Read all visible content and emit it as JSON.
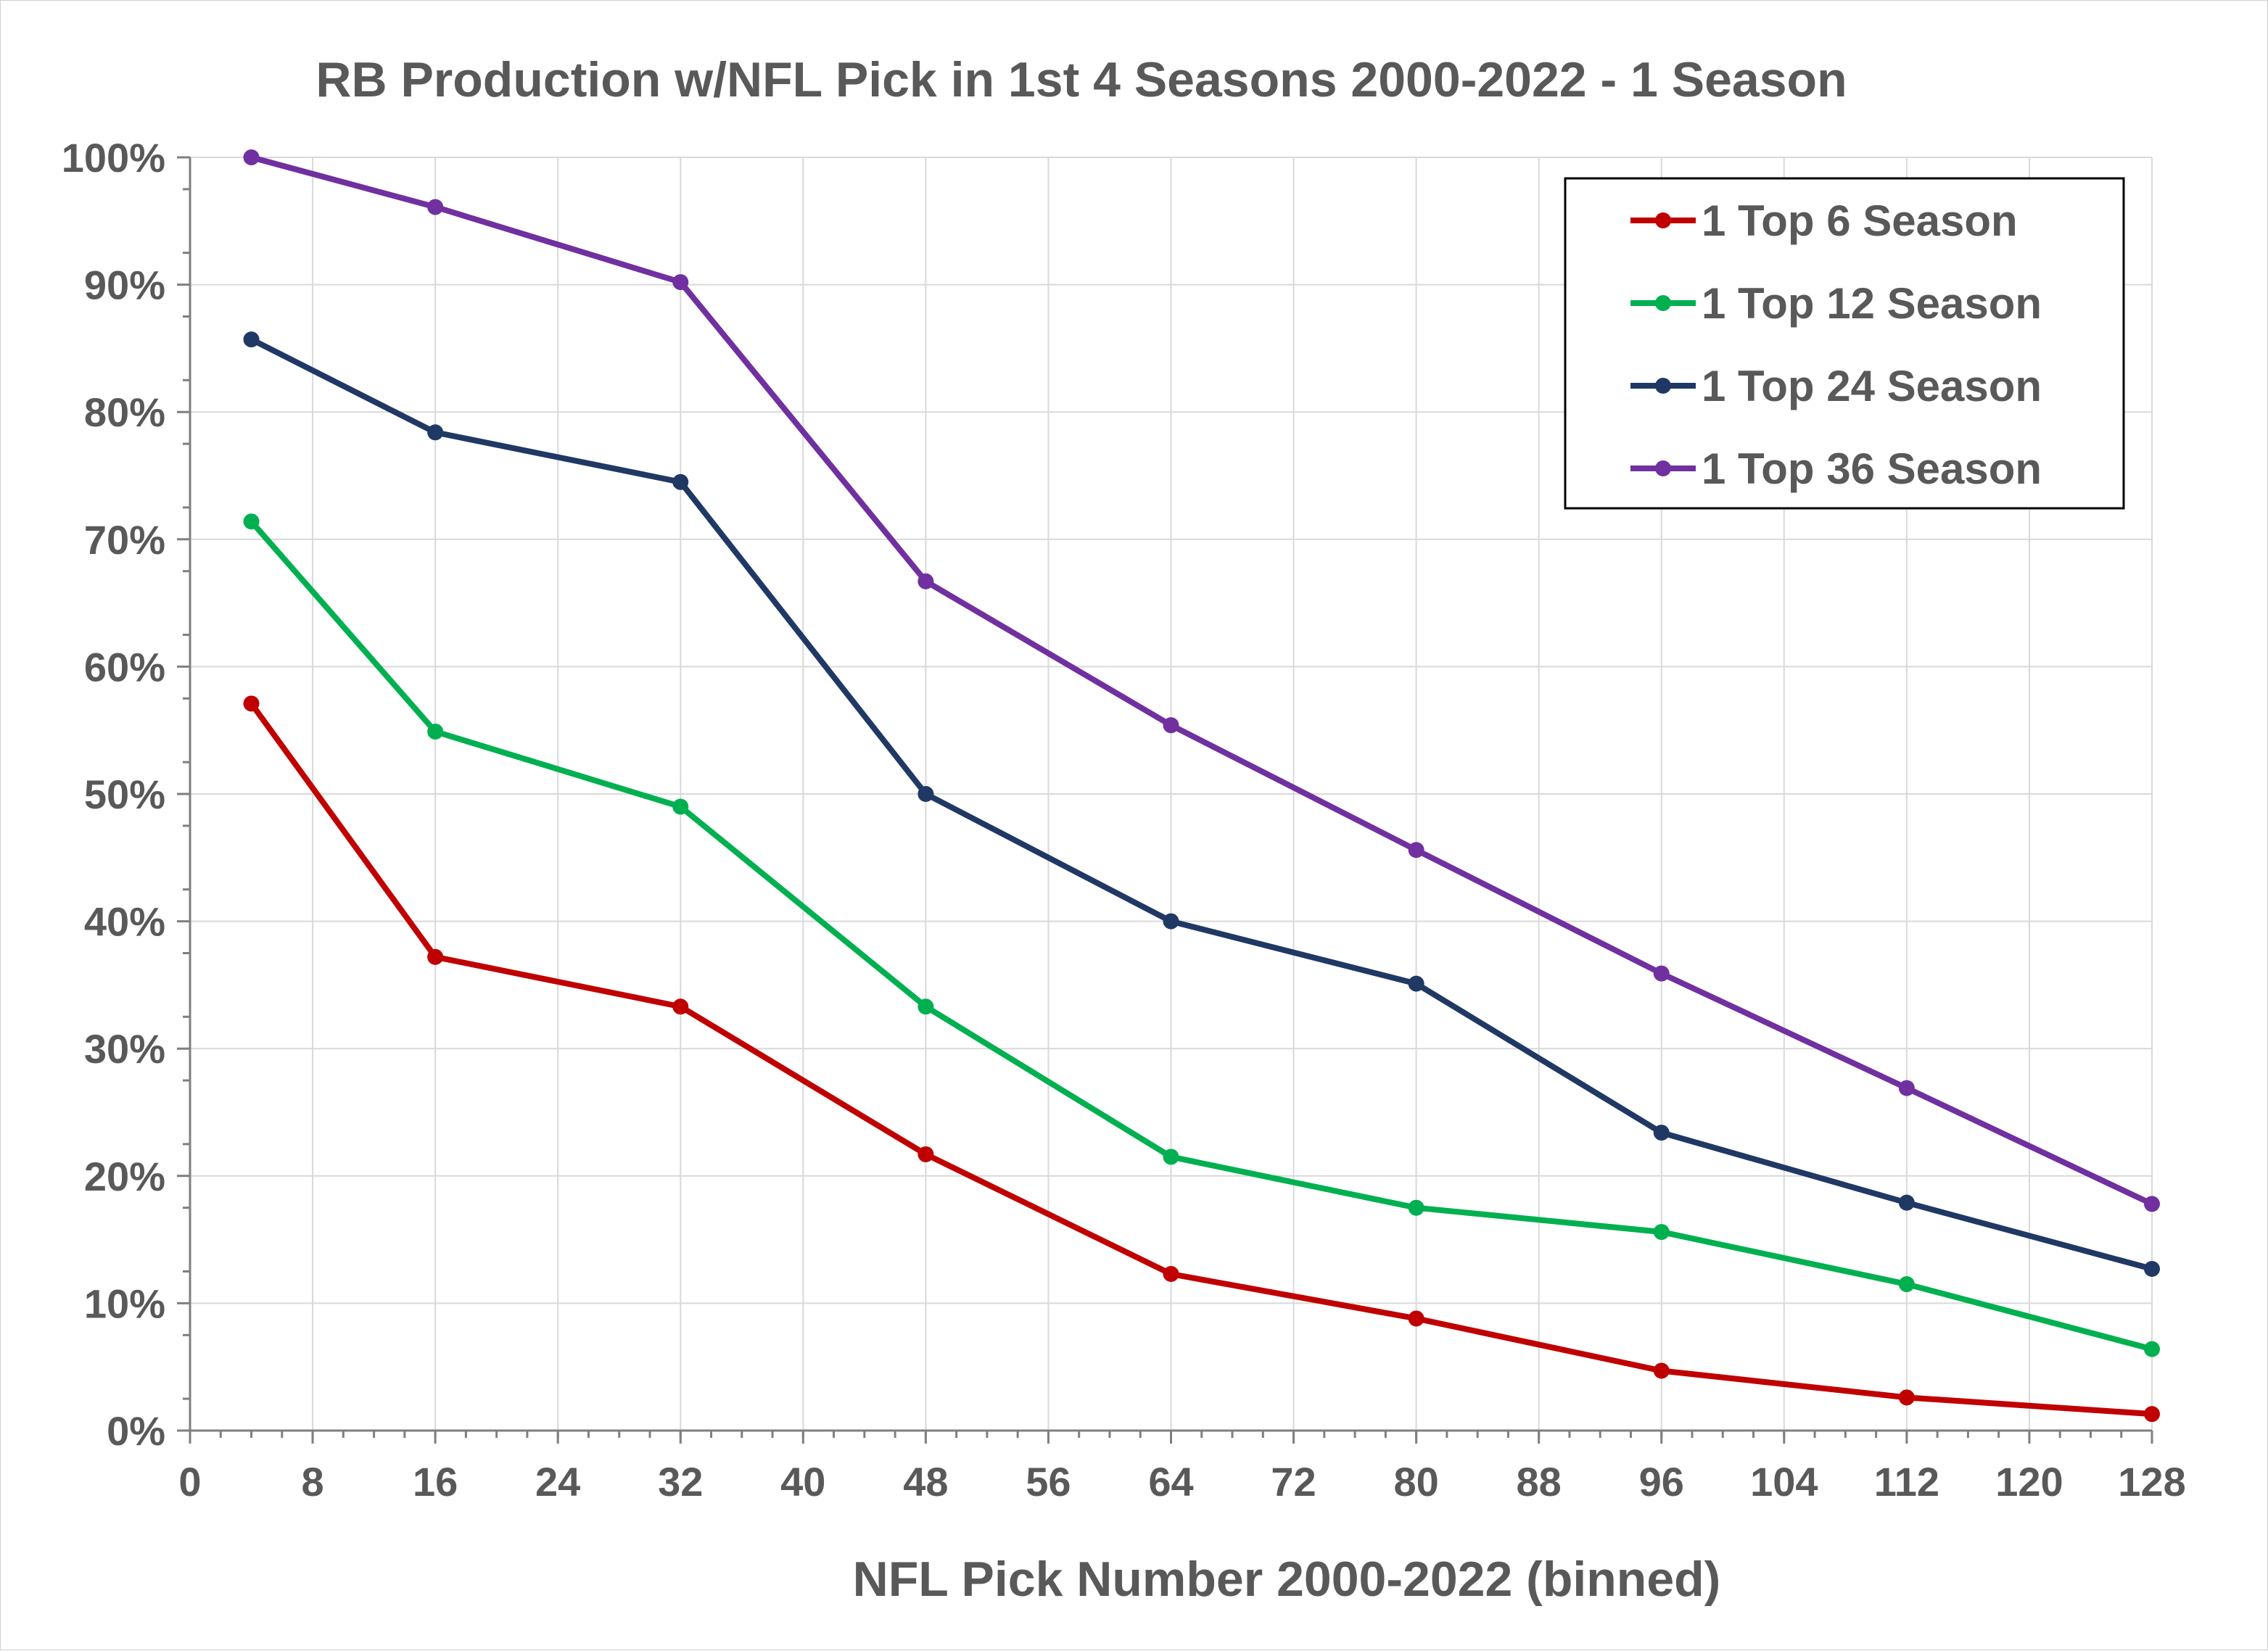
{
  "chart_data": {
    "type": "line",
    "title": "RB Production w/NFL Pick in 1st 4 Seasons 2000-2022 - 1 Season",
    "xlabel": "NFL Pick Number 2000-2022 (binned)",
    "ylabel": "",
    "xlim": [
      0,
      128
    ],
    "ylim": [
      0,
      1
    ],
    "x_ticks": [
      "0",
      "8",
      "16",
      "24",
      "32",
      "40",
      "48",
      "56",
      "64",
      "72",
      "80",
      "88",
      "96",
      "104",
      "112",
      "120",
      "128"
    ],
    "y_ticks": [
      "0%",
      "10%",
      "20%",
      "30%",
      "40%",
      "50%",
      "60%",
      "70%",
      "80%",
      "90%",
      "100%"
    ],
    "grid": true,
    "legend_position": "top-right",
    "x": [
      4,
      16,
      32,
      48,
      64,
      80,
      96,
      112,
      128
    ],
    "series": [
      {
        "name": "1 Top 6 Season",
        "color": "#c00000",
        "values": [
          0.571,
          0.372,
          0.333,
          0.217,
          0.123,
          0.088,
          0.047,
          0.026,
          0.013
        ]
      },
      {
        "name": "1 Top 12 Season",
        "color": "#00b050",
        "values": [
          0.714,
          0.549,
          0.49,
          0.333,
          0.215,
          0.175,
          0.156,
          0.115,
          0.064
        ]
      },
      {
        "name": "1 Top 24 Season",
        "color": "#203864",
        "values": [
          0.857,
          0.784,
          0.745,
          0.5,
          0.4,
          0.351,
          0.234,
          0.179,
          0.127
        ]
      },
      {
        "name": "1 Top 36 Season",
        "color": "#7030a0",
        "values": [
          1.0,
          0.961,
          0.902,
          0.667,
          0.554,
          0.456,
          0.359,
          0.269,
          0.178
        ]
      }
    ]
  }
}
